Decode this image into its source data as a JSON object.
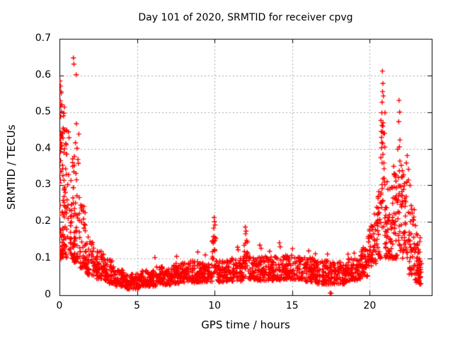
{
  "figure": {
    "background": "#ffffff",
    "text_color": "#000000",
    "border_color": "#000000",
    "grid_color": "#a8a8a8",
    "marker_color": "#ff0000"
  },
  "chart_data": {
    "type": "scatter",
    "title": "Day 101 of 2020, SRMTID for receiver cpvg",
    "xlabel": "GPS time / hours",
    "ylabel": "SRMTID / TECUs",
    "xlim": [
      0,
      24
    ],
    "ylim": [
      0,
      0.7
    ],
    "xticks": [
      0,
      5,
      10,
      15,
      20
    ],
    "yticks": [
      0,
      0.1,
      0.2,
      0.3,
      0.4,
      0.5,
      0.6,
      0.7
    ],
    "grid": true,
    "legend": "none",
    "series": [
      {
        "name": "SRMTID",
        "marker": "plus",
        "color": "#ff0000",
        "marker_size": 7
      }
    ],
    "description": "Dense + scatter: high spread 0.1-0.65 TECUs near 0-1.5 h, decaying to a low band ~0.02-0.09 between 3-19 h with spikes to ~0.21 at 10 h and ~0.19 at 12 h, two near-zero points at 17.5 h, then rising after 19.5 h to a spike of ~0.61 at 20.8 h, secondary column ~0.53 at 21.9 h, tailing off to ~0.05-0.17 by 23.3 h.",
    "seed": 101,
    "bands_format": "[x_start_hours, x_end_hours, n_points, y_min, y_max, low_bias_exponent]",
    "density_bands": [
      [
        0.0,
        0.2,
        28,
        0.1,
        0.58,
        1.6
      ],
      [
        0.05,
        0.45,
        38,
        0.11,
        0.52,
        1.9
      ],
      [
        0.2,
        0.6,
        34,
        0.1,
        0.46,
        1.9
      ],
      [
        0.6,
        1.0,
        38,
        0.1,
        0.4,
        1.9
      ],
      [
        0.85,
        1.3,
        40,
        0.09,
        0.34,
        1.8
      ],
      [
        1.3,
        1.75,
        45,
        0.075,
        0.25,
        1.7
      ],
      [
        1.75,
        2.25,
        48,
        0.055,
        0.165,
        1.6
      ],
      [
        2.25,
        2.85,
        55,
        0.045,
        0.125,
        1.5
      ],
      [
        2.85,
        3.5,
        58,
        0.032,
        0.1,
        1.5
      ],
      [
        3.5,
        4.2,
        60,
        0.024,
        0.072,
        1.4
      ],
      [
        4.2,
        5.2,
        80,
        0.017,
        0.058,
        1.3
      ],
      [
        5.2,
        6.2,
        80,
        0.024,
        0.068,
        1.3
      ],
      [
        6.2,
        7.2,
        82,
        0.028,
        0.078,
        1.3
      ],
      [
        7.2,
        8.2,
        82,
        0.032,
        0.088,
        1.3
      ],
      [
        8.2,
        9.3,
        88,
        0.034,
        0.094,
        1.3
      ],
      [
        9.3,
        9.85,
        42,
        0.035,
        0.085,
        1.3
      ],
      [
        9.85,
        10.15,
        28,
        0.05,
        0.18,
        1.1
      ],
      [
        10.15,
        11.0,
        68,
        0.035,
        0.095,
        1.3
      ],
      [
        11.0,
        11.88,
        70,
        0.038,
        0.103,
        1.3
      ],
      [
        11.88,
        12.15,
        20,
        0.05,
        0.165,
        1.1
      ],
      [
        12.15,
        13.2,
        82,
        0.04,
        0.105,
        1.3
      ],
      [
        13.2,
        14.5,
        98,
        0.04,
        0.106,
        1.3
      ],
      [
        14.5,
        15.6,
        88,
        0.042,
        0.11,
        1.3
      ],
      [
        15.6,
        16.6,
        80,
        0.036,
        0.104,
        1.3
      ],
      [
        16.6,
        17.6,
        78,
        0.03,
        0.094,
        1.3
      ],
      [
        17.6,
        18.6,
        78,
        0.03,
        0.09,
        1.3
      ],
      [
        18.6,
        19.4,
        66,
        0.04,
        0.1,
        1.3
      ],
      [
        19.4,
        19.9,
        44,
        0.05,
        0.13,
        1.25
      ],
      [
        19.9,
        20.4,
        44,
        0.08,
        0.2,
        1.25
      ],
      [
        20.4,
        20.7,
        28,
        0.1,
        0.3,
        1.25
      ],
      [
        20.7,
        21.0,
        34,
        0.14,
        0.5,
        1.2
      ],
      [
        21.0,
        21.4,
        40,
        0.1,
        0.295,
        1.35
      ],
      [
        21.4,
        21.8,
        40,
        0.1,
        0.335,
        1.35
      ],
      [
        21.8,
        22.05,
        26,
        0.12,
        0.4,
        1.2
      ],
      [
        22.05,
        22.5,
        40,
        0.1,
        0.33,
        1.35
      ],
      [
        22.5,
        22.9,
        38,
        0.055,
        0.25,
        1.3
      ],
      [
        22.9,
        23.3,
        38,
        0.033,
        0.165,
        1.25
      ],
      [
        23.1,
        23.35,
        14,
        0.03,
        0.09,
        1.2
      ]
    ],
    "points": [
      [
        0.04,
        0.585
      ],
      [
        0.07,
        0.571
      ],
      [
        0.1,
        0.556
      ],
      [
        0.9,
        0.648
      ],
      [
        0.93,
        0.631
      ],
      [
        1.08,
        0.602
      ],
      [
        0.05,
        0.531
      ],
      [
        0.09,
        0.517
      ],
      [
        0.13,
        0.502
      ],
      [
        0.29,
        0.497
      ],
      [
        1.09,
        0.468
      ],
      [
        0.24,
        0.456
      ],
      [
        0.45,
        0.451
      ],
      [
        0.16,
        0.441
      ],
      [
        0.06,
        0.428
      ],
      [
        1.03,
        0.416
      ],
      [
        0.11,
        0.409
      ],
      [
        1.13,
        0.401
      ],
      [
        0.07,
        0.392
      ],
      [
        0.96,
        0.379
      ],
      [
        1.19,
        0.371
      ],
      [
        0.31,
        0.452
      ],
      [
        0.58,
        0.446
      ],
      [
        0.62,
        0.43
      ],
      [
        1.22,
        0.36
      ],
      [
        0.85,
        0.352
      ],
      [
        0.4,
        0.345
      ],
      [
        1.25,
        0.44
      ],
      [
        6.15,
        0.103
      ],
      [
        7.55,
        0.106
      ],
      [
        8.92,
        0.118
      ],
      [
        9.4,
        0.11
      ],
      [
        9.97,
        0.212
      ],
      [
        10.0,
        0.201
      ],
      [
        10.03,
        0.192
      ],
      [
        9.94,
        0.183
      ],
      [
        11.48,
        0.131
      ],
      [
        11.52,
        0.124
      ],
      [
        11.98,
        0.186
      ],
      [
        12.03,
        0.175
      ],
      [
        12.0,
        0.168
      ],
      [
        12.91,
        0.137
      ],
      [
        13.0,
        0.128
      ],
      [
        13.55,
        0.12
      ],
      [
        14.18,
        0.143
      ],
      [
        14.23,
        0.132
      ],
      [
        15.02,
        0.127
      ],
      [
        16.07,
        0.121
      ],
      [
        16.5,
        0.113
      ],
      [
        17.28,
        0.112
      ],
      [
        18.6,
        0.112
      ],
      [
        19.0,
        0.115
      ],
      [
        17.45,
        0.006
      ],
      [
        17.52,
        0.005
      ],
      [
        19.95,
        0.155
      ],
      [
        20.18,
        0.185
      ],
      [
        20.3,
        0.222
      ],
      [
        20.45,
        0.24
      ],
      [
        20.55,
        0.27
      ],
      [
        20.82,
        0.612
      ],
      [
        20.85,
        0.578
      ],
      [
        20.83,
        0.556
      ],
      [
        20.88,
        0.544
      ],
      [
        20.8,
        0.527
      ],
      [
        20.86,
        0.471
      ],
      [
        20.79,
        0.464
      ],
      [
        20.9,
        0.442
      ],
      [
        20.76,
        0.431
      ],
      [
        20.84,
        0.415
      ],
      [
        21.12,
        0.31
      ],
      [
        21.3,
        0.29
      ],
      [
        21.55,
        0.352
      ],
      [
        21.62,
        0.331
      ],
      [
        21.89,
        0.532
      ],
      [
        21.93,
        0.5
      ],
      [
        21.87,
        0.474
      ],
      [
        21.95,
        0.424
      ],
      [
        21.91,
        0.405
      ],
      [
        22.1,
        0.34
      ],
      [
        22.42,
        0.381
      ],
      [
        22.36,
        0.361
      ],
      [
        22.5,
        0.344
      ],
      [
        22.6,
        0.3
      ],
      [
        22.95,
        0.19
      ],
      [
        23.02,
        0.168
      ],
      [
        23.1,
        0.141
      ],
      [
        23.2,
        0.1
      ]
    ]
  }
}
